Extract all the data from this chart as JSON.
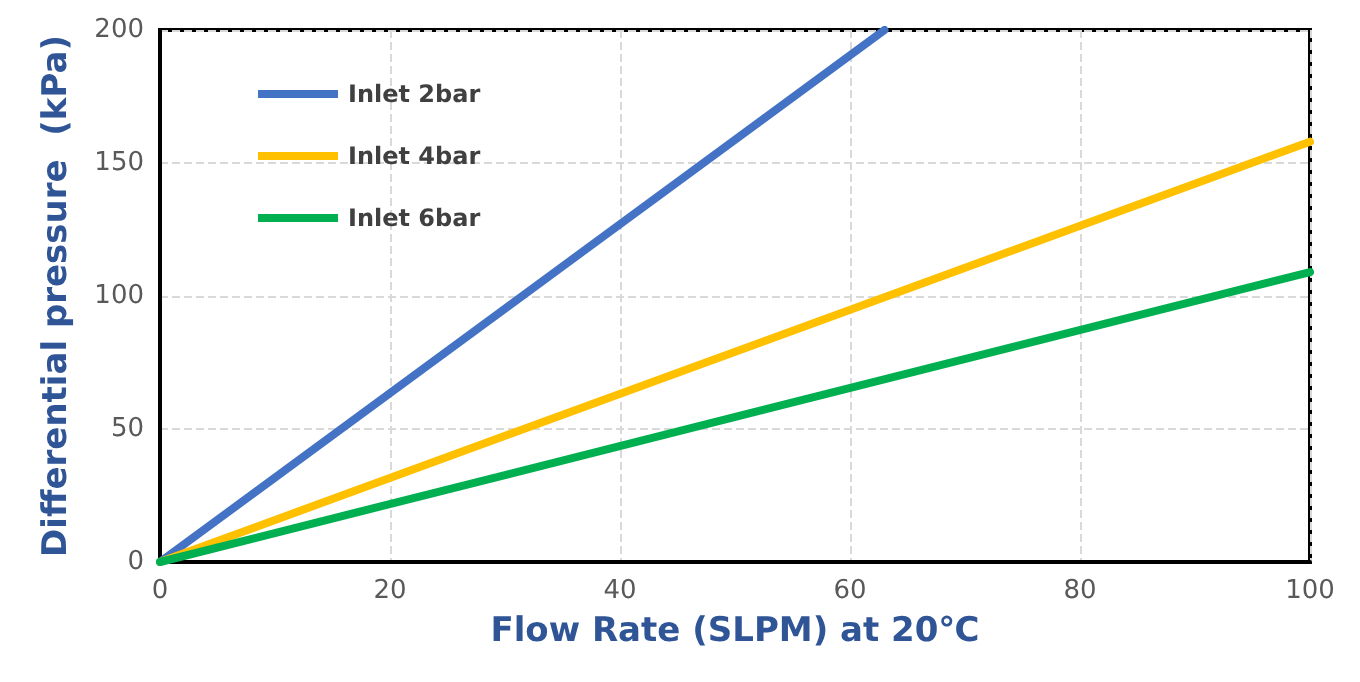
{
  "chart_data": {
    "type": "line",
    "xlabel": "Flow Rate (SLPM) at 20℃",
    "ylabel": "Differential pressure  (kPa)",
    "series": [
      {
        "name": "Inlet 2bar",
        "color": "#4472c4",
        "x": [
          0,
          63
        ],
        "values": [
          0,
          200
        ]
      },
      {
        "name": "Inlet 4bar",
        "color": "#ffc000",
        "x": [
          0,
          100
        ],
        "values": [
          0,
          158
        ]
      },
      {
        "name": "Inlet 6bar",
        "color": "#00b050",
        "x": [
          0,
          100
        ],
        "values": [
          0,
          109
        ]
      }
    ],
    "xlim": [
      0,
      100
    ],
    "xticks": [
      0,
      20,
      40,
      60,
      80,
      100
    ],
    "ylim": [
      0,
      200
    ],
    "yticks": [
      0,
      50,
      100,
      150,
      200
    ],
    "grid": true,
    "legend": "top left",
    "marker": "none",
    "line_style": "solid"
  }
}
